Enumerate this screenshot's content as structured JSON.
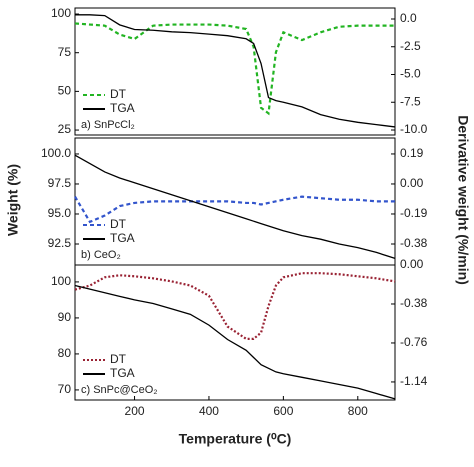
{
  "x_label": "Temperature (⁰C)",
  "y_label": "Weight (%)",
  "y2_label": "Derivative weight (%/min)",
  "chart_data": [
    {
      "type": "line",
      "label": "a) SnPcCl₂",
      "xlim": [
        40,
        900
      ],
      "ylim": [
        21.8,
        103.9
      ],
      "yticks": [
        25,
        50,
        75,
        100
      ],
      "y2lim": [
        -10.45,
        0.99
      ],
      "y2ticks": [
        {
          "value": 0,
          "label": "0.0"
        },
        -2.5,
        {
          "value": -5,
          "label": "-5.0"
        },
        -7.5,
        {
          "value": -10,
          "label": "-10.0"
        }
      ],
      "x": [
        40,
        80,
        120,
        160,
        200,
        250,
        300,
        350,
        400,
        450,
        500,
        520,
        540,
        560,
        580,
        600,
        650,
        700,
        750,
        800,
        850,
        900
      ],
      "series": [
        {
          "name": "DT",
          "color": "#22b422",
          "line_style": "dashed",
          "axis": "y2",
          "values": [
            -0.4,
            -0.5,
            -0.6,
            -1.4,
            -1.8,
            -0.6,
            -0.5,
            -0.5,
            -0.5,
            -0.6,
            -0.9,
            -2.5,
            -8,
            -8.5,
            -3,
            -1.2,
            -1.9,
            -1.2,
            -0.7,
            -0.6,
            -0.6,
            -0.6
          ]
        },
        {
          "name": "TGA",
          "color": "#000000",
          "line_style": "solid",
          "values": [
            99.5,
            99.5,
            99,
            93,
            90,
            89.5,
            88.5,
            88,
            87,
            86,
            84,
            81,
            68,
            46,
            44,
            43,
            40,
            35,
            32,
            30,
            28.5,
            27
          ]
        }
      ]
    },
    {
      "type": "line",
      "label": "b) CeO₂",
      "xlim": [
        40,
        900
      ],
      "ylim": [
        90.75,
        101.33
      ],
      "yticks": [
        {
          "value": 100,
          "label": "100.0"
        },
        97.5,
        {
          "value": 95,
          "label": "95.0"
        },
        92.5
      ],
      "y2lim": [
        -0.513,
        0.291
      ],
      "y2ticks": [
        0.19,
        {
          "value": 0,
          "label": "0.00"
        },
        -0.19,
        -0.38
      ],
      "x": [
        40,
        80,
        120,
        160,
        200,
        250,
        300,
        350,
        400,
        450,
        500,
        520,
        540,
        560,
        580,
        600,
        650,
        700,
        750,
        800,
        850,
        900
      ],
      "series": [
        {
          "name": "DT",
          "color": "#3355cc",
          "line_style": "dashed",
          "axis": "y2",
          "values": [
            -0.08,
            -0.24,
            -0.2,
            -0.14,
            -0.12,
            -0.11,
            -0.11,
            -0.11,
            -0.11,
            -0.11,
            -0.12,
            -0.12,
            -0.13,
            -0.12,
            -0.11,
            -0.1,
            -0.08,
            -0.09,
            -0.1,
            -0.1,
            -0.11,
            -0.11
          ]
        },
        {
          "name": "TGA",
          "color": "#000000",
          "line_style": "solid",
          "values": [
            99.9,
            99.2,
            98.5,
            98,
            97.6,
            97.1,
            96.6,
            96.1,
            95.6,
            95.1,
            94.6,
            94.4,
            94.2,
            94,
            93.8,
            93.6,
            93.2,
            92.9,
            92.5,
            92.2,
            91.8,
            91.3
          ]
        }
      ]
    },
    {
      "type": "line",
      "label": "c) SnPc@CeO₂",
      "xlim": [
        40,
        900
      ],
      "xticks": [
        200,
        400,
        600,
        800
      ],
      "ylim": [
        67.2,
        104.7
      ],
      "yticks": [
        100,
        90,
        80,
        70
      ],
      "y2lim": [
        -1.316,
        0
      ],
      "y2ticks": [
        {
          "value": 0,
          "label": "0.00"
        },
        -0.38,
        -0.76,
        -1.14
      ],
      "x": [
        40,
        80,
        120,
        160,
        200,
        250,
        300,
        350,
        400,
        450,
        500,
        520,
        540,
        560,
        580,
        600,
        650,
        700,
        750,
        800,
        850,
        900
      ],
      "series": [
        {
          "name": "DT",
          "color": "#992233",
          "line_style": "dotted",
          "axis": "y2",
          "values": [
            -0.24,
            -0.2,
            -0.12,
            -0.1,
            -0.11,
            -0.13,
            -0.16,
            -0.2,
            -0.3,
            -0.6,
            -0.72,
            -0.72,
            -0.66,
            -0.4,
            -0.2,
            -0.12,
            -0.08,
            -0.08,
            -0.09,
            -0.11,
            -0.13,
            -0.16
          ]
        },
        {
          "name": "TGA",
          "color": "#000000",
          "line_style": "solid",
          "values": [
            99,
            98,
            97,
            96,
            95,
            94,
            92.5,
            91,
            88,
            84,
            81,
            79,
            77,
            76,
            75,
            74.5,
            73.5,
            72.5,
            71.5,
            70.5,
            69,
            67.5
          ]
        }
      ]
    }
  ]
}
